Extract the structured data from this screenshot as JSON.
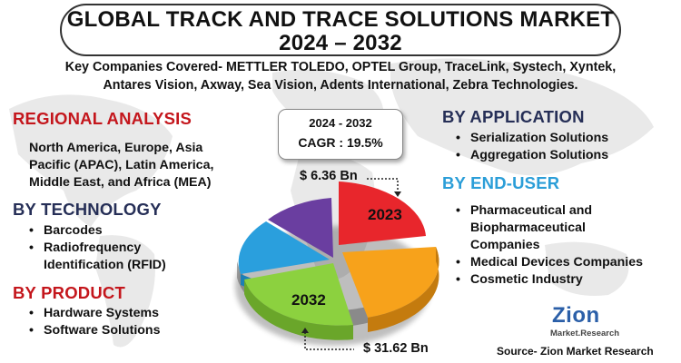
{
  "title": {
    "line1": "GLOBAL TRACK AND TRACE SOLUTIONS MARKET",
    "line2": "2024 – 2032"
  },
  "companies": {
    "line1": "Key Companies Covered- METTLER TOLEDO, OPTEL Group, TraceLink, Systech, Xyntek,",
    "line2": "Antares Vision, Axway, Sea Vision, Adents International, Zebra Technologies."
  },
  "regional": {
    "heading": "REGIONAL ANALYSIS",
    "lines": [
      "North America, Europe, Asia",
      "Pacific (APAC), Latin America,",
      "Middle East, and Africa (MEA)"
    ]
  },
  "technology": {
    "heading": "BY TECHNOLOGY",
    "items": [
      "Barcodes",
      "Radiofrequency",
      "Identification (RFID)"
    ]
  },
  "product": {
    "heading": "BY PRODUCT",
    "items": [
      "Hardware Systems",
      "Software Solutions"
    ]
  },
  "application": {
    "heading": "BY APPLICATION",
    "items": [
      "Serialization Solutions",
      "Aggregation Solutions"
    ]
  },
  "end_user": {
    "heading": "BY END-USER",
    "items": [
      "Pharmaceutical and",
      "Biopharmaceutical",
      "Companies",
      "Medical Devices Companies",
      "Cosmetic Industry"
    ]
  },
  "cagr": {
    "period": "2024 - 2032",
    "value": "CAGR : 19.5%"
  },
  "market_values": {
    "start_value": "$ 6.36 Bn",
    "end_value": "$ 31.62  Bn",
    "start_year": "2023",
    "end_year": "2032"
  },
  "pie_colors": {
    "red": "#e8262c",
    "orange": "#f7a21b",
    "green": "#8cd13f",
    "blue": "#2a9fdd",
    "purple": "#6a3ea0"
  },
  "logo": {
    "name": "Zion",
    "subtitle": "Market.Research"
  },
  "source": "Source- Zion Market Research"
}
